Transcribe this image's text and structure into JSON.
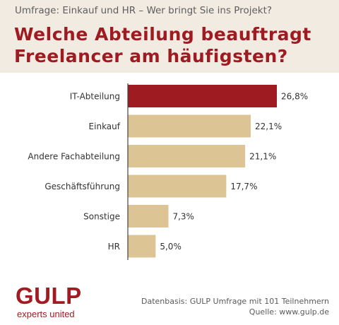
{
  "header": {
    "subtitle": "Umfrage: Einkauf und HR – Wer bringt Sie ins Projekt?",
    "title": "Welche Abteilung beauftragt Freelancer am häufigsten?"
  },
  "chart_data": {
    "type": "bar",
    "orientation": "horizontal",
    "categories": [
      "IT-Abteilung",
      "Einkauf",
      "Andere Fachabteilung",
      "Geschäftsführung",
      "Sonstige",
      "HR"
    ],
    "values": [
      26.8,
      22.1,
      21.1,
      17.7,
      7.3,
      5.0
    ],
    "value_labels": [
      "26,8%",
      "22,1%",
      "21,1%",
      "17,7%",
      "7,3%",
      "5,0%"
    ],
    "unit": "%",
    "xlim": [
      0,
      26.8
    ],
    "grid": false,
    "legend": "none",
    "highlight_index": 0,
    "colors": {
      "highlight": "#9e1b22",
      "bar": "#ddc495",
      "axis": "#444444"
    }
  },
  "logo": {
    "mark": "GULP",
    "tagline": "experts united"
  },
  "footer": {
    "source_line1": "Datenbasis: GULP Umfrage mit 101 Teilnehmern",
    "source_line2": "Quelle: www.gulp.de"
  }
}
